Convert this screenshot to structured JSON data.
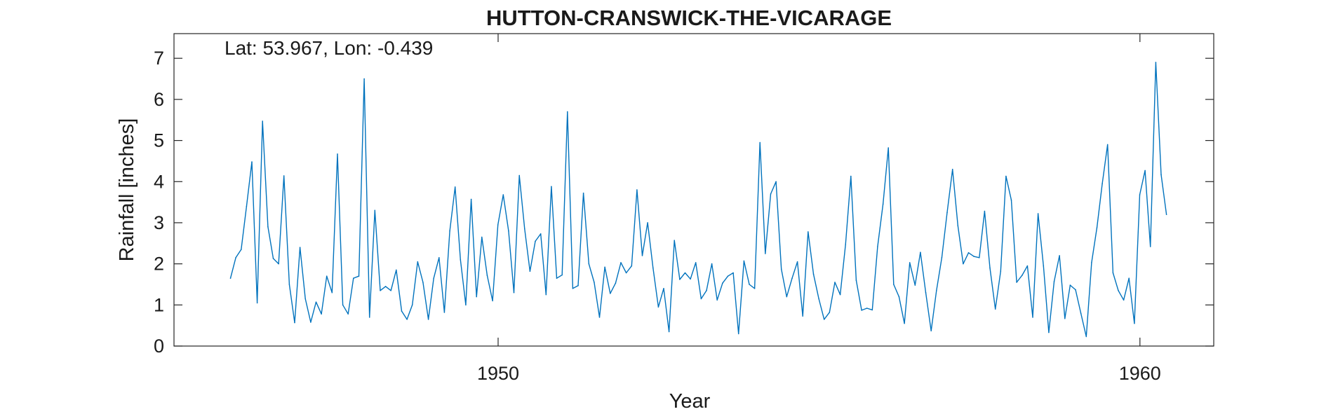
{
  "chart_data": {
    "type": "line",
    "title": "HUTTON-CRANSWICK-THE-VICARAGE",
    "annotation": "Lat: 53.967, Lon: -0.439",
    "xlabel": "Year",
    "ylabel": "Rainfall [inches]",
    "xlim": [
      1944.95,
      1961.15
    ],
    "ylim": [
      0,
      7.6
    ],
    "xticks": [
      1950,
      1960
    ],
    "xtick_labels": [
      "1950",
      "1960"
    ],
    "yticks": [
      0,
      1,
      2,
      3,
      4,
      5,
      6,
      7
    ],
    "ytick_labels": [
      "0",
      "1",
      "2",
      "3",
      "4",
      "5",
      "6",
      "7"
    ],
    "grid": false,
    "series": [
      {
        "color": "#0072BD",
        "x_start": 1945.83,
        "x_step": 0.083333,
        "values": [
          1.65,
          2.15,
          2.35,
          3.4,
          4.48,
          1.05,
          5.47,
          2.9,
          2.13,
          2.0,
          4.14,
          1.5,
          0.57,
          2.4,
          1.15,
          0.58,
          1.07,
          0.78,
          1.7,
          1.3,
          4.67,
          1.0,
          0.78,
          1.65,
          1.7,
          6.5,
          0.7,
          3.3,
          1.35,
          1.45,
          1.35,
          1.85,
          0.85,
          0.65,
          1.0,
          2.05,
          1.55,
          0.65,
          1.65,
          2.15,
          0.82,
          2.8,
          3.87,
          2.1,
          1.0,
          3.57,
          1.2,
          2.65,
          1.72,
          1.1,
          2.95,
          3.68,
          2.8,
          1.3,
          4.15,
          2.85,
          1.82,
          2.55,
          2.73,
          1.25,
          3.88,
          1.65,
          1.73,
          5.7,
          1.4,
          1.47,
          3.72,
          2.0,
          1.55,
          0.7,
          1.92,
          1.28,
          1.53,
          2.03,
          1.78,
          1.95,
          3.8,
          2.2,
          3.0,
          1.9,
          0.95,
          1.4,
          0.35,
          2.57,
          1.62,
          1.78,
          1.63,
          2.03,
          1.15,
          1.35,
          2.0,
          1.12,
          1.53,
          1.7,
          1.78,
          0.3,
          2.07,
          1.5,
          1.4,
          4.95,
          2.25,
          3.7,
          4.0,
          1.87,
          1.2,
          1.65,
          2.05,
          0.73,
          2.78,
          1.75,
          1.15,
          0.65,
          0.82,
          1.55,
          1.25,
          2.47,
          4.13,
          1.6,
          0.87,
          0.92,
          0.88,
          2.42,
          3.45,
          4.82,
          1.5,
          1.2,
          0.55,
          2.03,
          1.48,
          2.28,
          1.3,
          0.37,
          1.35,
          2.15,
          3.25,
          4.3,
          2.93,
          2.0,
          2.27,
          2.18,
          2.15,
          3.28,
          1.9,
          0.9,
          1.82,
          4.13,
          3.55,
          1.55,
          1.72,
          1.95,
          0.7,
          3.22,
          1.95,
          0.33,
          1.57,
          2.2,
          0.67,
          1.48,
          1.37,
          0.8,
          0.23,
          2.03,
          2.88,
          3.95,
          4.9,
          1.78,
          1.35,
          1.12,
          1.65,
          0.55,
          3.68,
          4.27,
          2.42,
          6.9,
          4.17,
          3.2
        ]
      }
    ]
  }
}
